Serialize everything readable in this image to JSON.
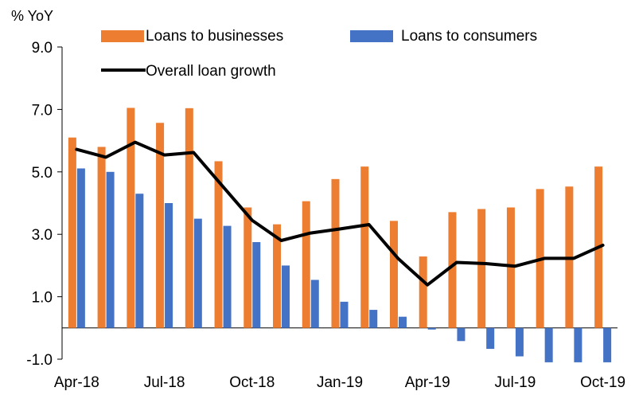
{
  "chart_data": {
    "type": "bar",
    "title": "",
    "ylabel": "% YoY",
    "xlabel": "",
    "ylim": [
      -1.0,
      9.0
    ],
    "y_ticks": [
      "9.0",
      "7.0",
      "5.0",
      "3.0",
      "1.0",
      "-1.0"
    ],
    "grid": false,
    "legend_position": "top",
    "categories": [
      "Apr-18",
      "May-18",
      "Jun-18",
      "Jul-18",
      "Aug-18",
      "Sep-18",
      "Oct-18",
      "Nov-18",
      "Dec-18",
      "Jan-19",
      "Feb-19",
      "Mar-19",
      "Apr-19",
      "May-19",
      "Jun-19",
      "Jul-19",
      "Aug-19",
      "Sep-19",
      "Oct-19"
    ],
    "x_tick_labels": [
      "Apr-18",
      "",
      "",
      "Jul-18",
      "",
      "",
      "Oct-18",
      "",
      "",
      "Jan-19",
      "",
      "",
      "Apr-19",
      "",
      "",
      "Jul-19",
      "",
      "",
      "Oct-19"
    ],
    "series": [
      {
        "name": "Loans to businesses",
        "type": "bar",
        "color": "#ED7D31",
        "values": [
          6.1,
          5.8,
          7.05,
          6.57,
          7.04,
          5.34,
          3.86,
          3.32,
          4.06,
          4.77,
          5.17,
          3.43,
          2.29,
          3.71,
          3.81,
          3.86,
          4.45,
          4.53,
          5.17
        ]
      },
      {
        "name": "Loans to consumers",
        "type": "bar",
        "color": "#4472C4",
        "values": [
          5.11,
          5.0,
          4.3,
          4.0,
          3.5,
          3.27,
          2.75,
          2.0,
          1.54,
          0.84,
          0.58,
          0.36,
          -0.05,
          -0.42,
          -0.67,
          -0.91,
          -1.1,
          -1.1,
          -1.1
        ]
      },
      {
        "name": "Overall loan growth",
        "type": "line",
        "color": "#000000",
        "values": [
          5.72,
          5.47,
          5.95,
          5.54,
          5.62,
          4.53,
          3.45,
          2.8,
          3.04,
          3.17,
          3.31,
          2.22,
          1.38,
          2.1,
          2.06,
          1.98,
          2.23,
          2.23,
          2.65
        ]
      }
    ]
  }
}
